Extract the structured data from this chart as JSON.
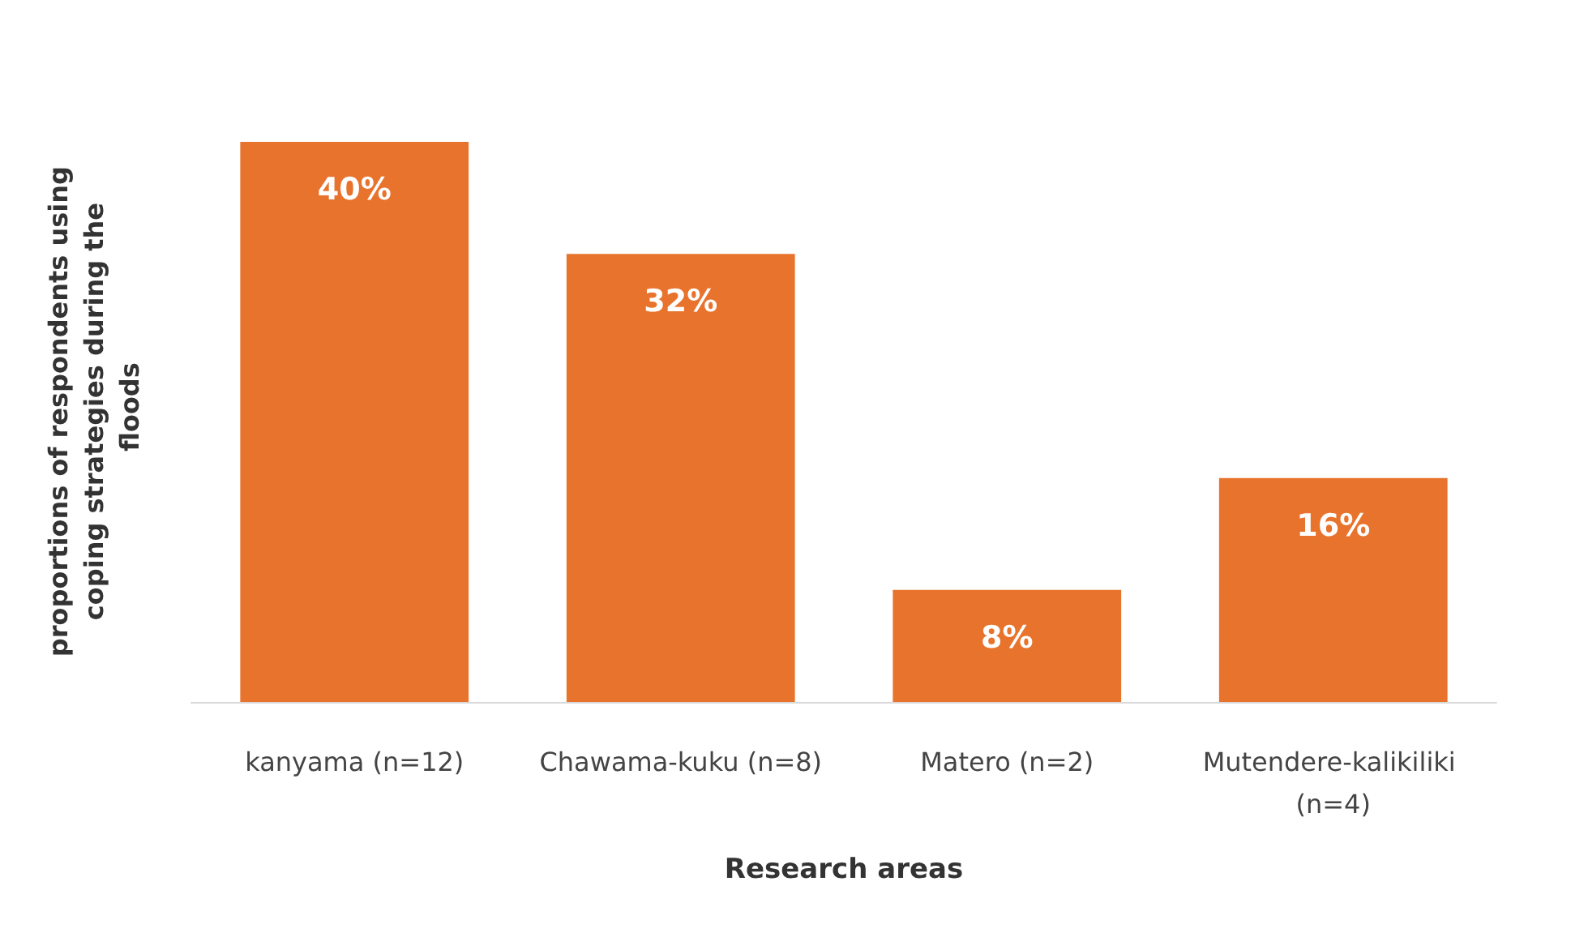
{
  "chart_data": {
    "type": "bar",
    "categories": [
      "kanyama (n=12)",
      "Chawama-kuku (n=8)",
      "Matero (n=2)",
      "Mutendere-kalikiliki (n=4)"
    ],
    "values": [
      40,
      32,
      8,
      16
    ],
    "value_labels": [
      "40%",
      "32%",
      "8%",
      "16%"
    ],
    "color": "#e8732c",
    "xlabel": "Research areas",
    "ylabel": "proportions of respondents using coping strategies during the floods",
    "grid": false
  }
}
